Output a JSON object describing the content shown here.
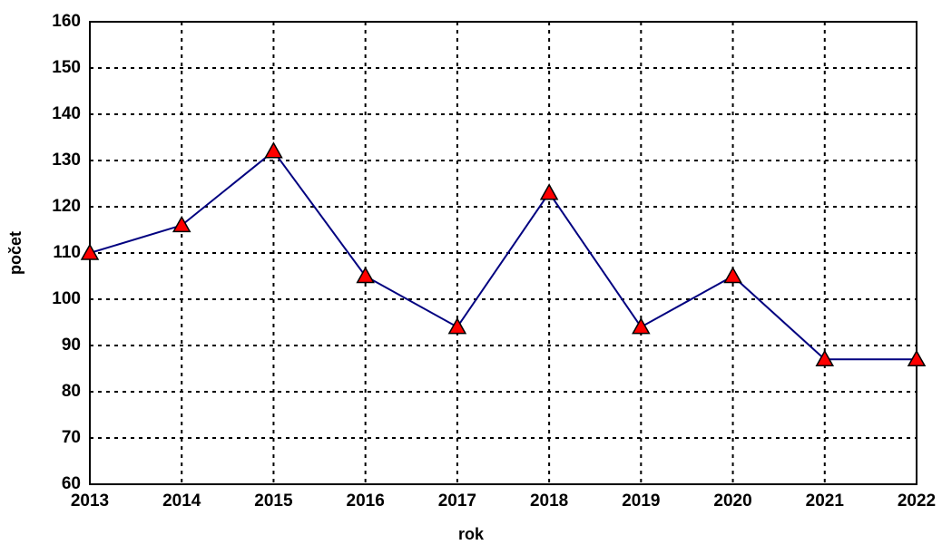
{
  "chart_data": {
    "type": "line",
    "x": [
      2013,
      2014,
      2015,
      2016,
      2017,
      2018,
      2019,
      2020,
      2021,
      2022
    ],
    "series": [
      {
        "color": "#000080",
        "marker_color": "#ff0000",
        "values": [
          110,
          116,
          132,
          105,
          94,
          123,
          94,
          105,
          87,
          87
        ]
      }
    ],
    "xlabel": "rok",
    "ylabel": "počet",
    "xlim": [
      2013,
      2022
    ],
    "xticks": [
      2013,
      2014,
      2015,
      2016,
      2017,
      2018,
      2019,
      2020,
      2021,
      2022
    ],
    "ylim": [
      60,
      160
    ],
    "yticks": [
      60,
      70,
      80,
      90,
      100,
      110,
      120,
      130,
      140,
      150,
      160
    ],
    "grid": true
  }
}
